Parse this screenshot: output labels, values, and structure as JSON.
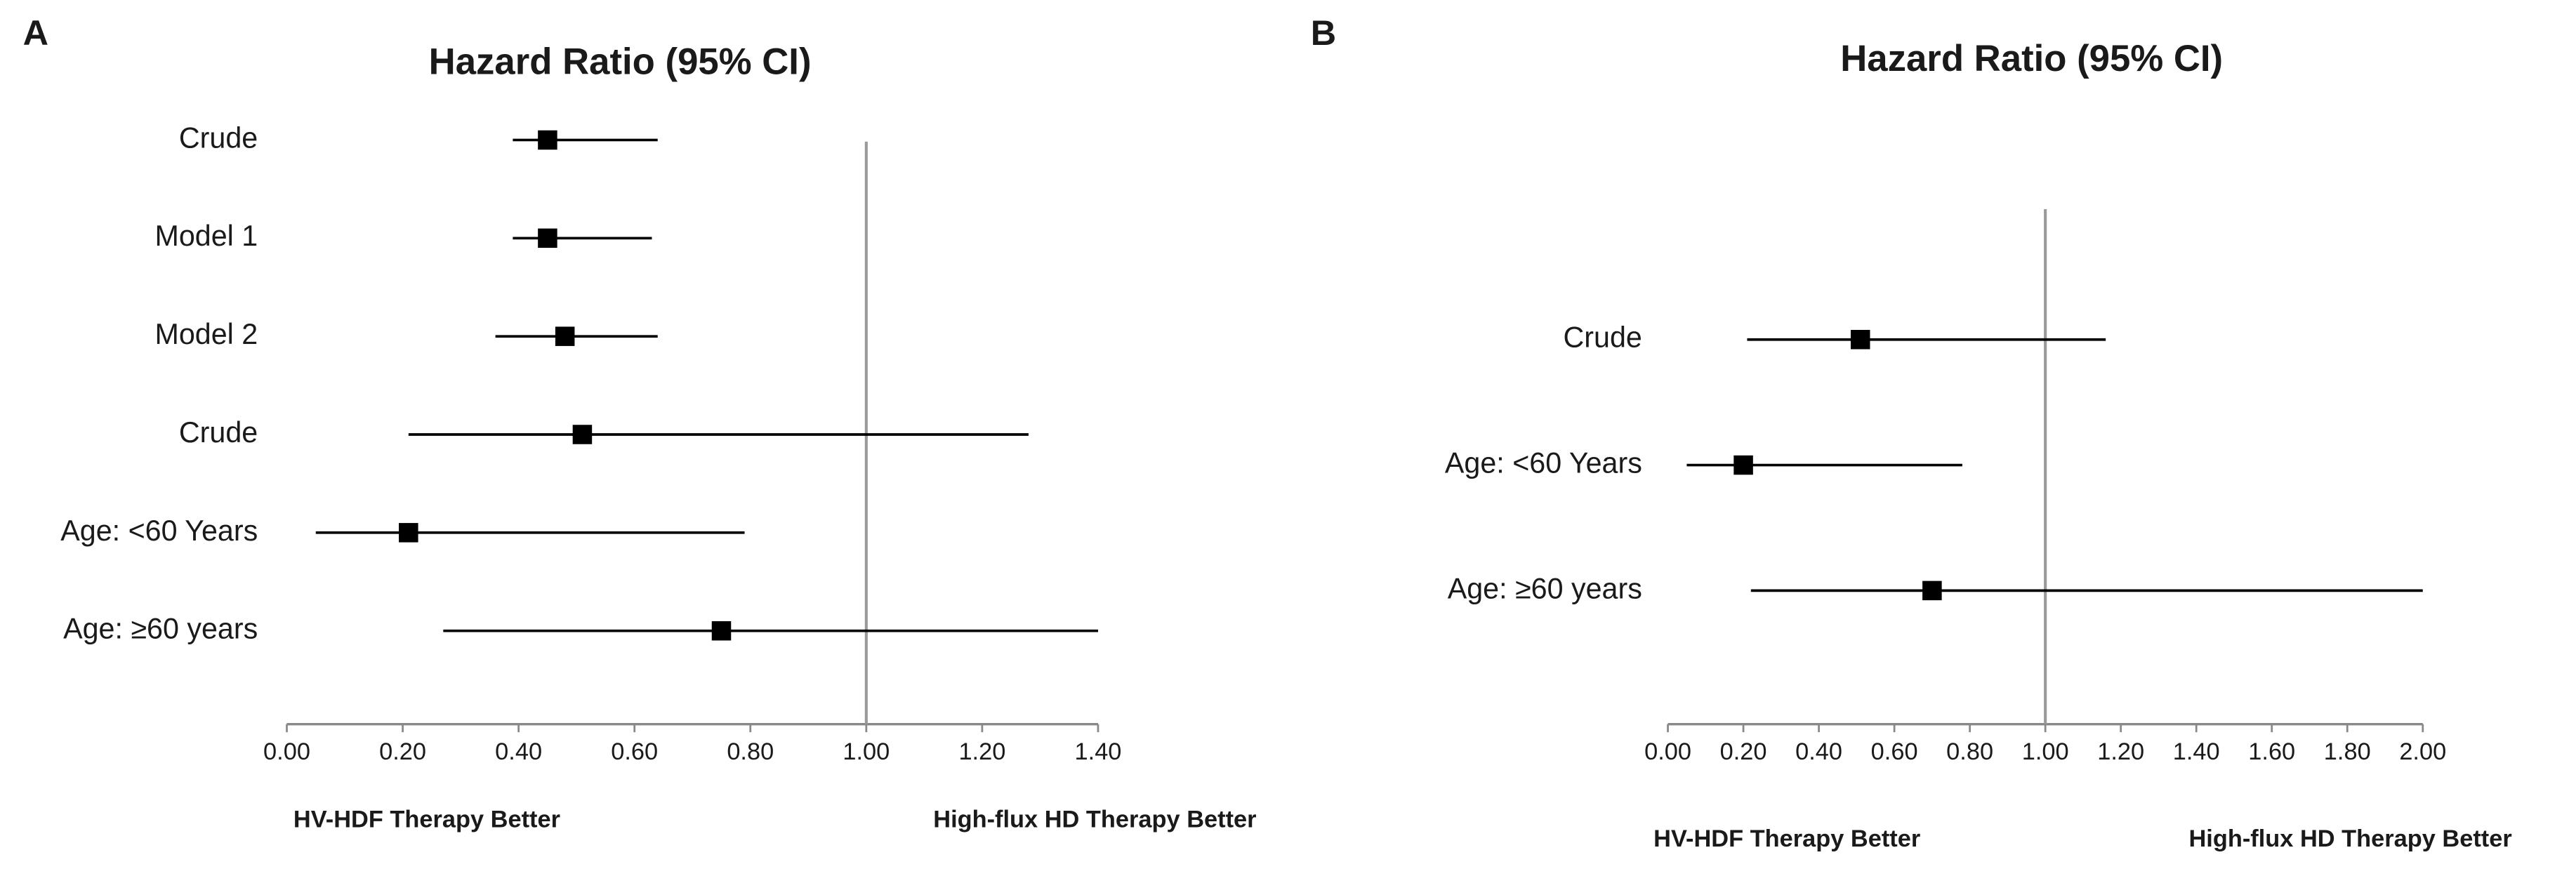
{
  "chart_data": [
    {
      "type": "forest",
      "panel": "A",
      "title": "Hazard Ratio (95% CI)",
      "categories": [
        "Crude",
        "Model 1",
        "Model 2",
        "Crude",
        "Age: <60 Years",
        "Age: ≥60 years"
      ],
      "values": [
        0.45,
        0.45,
        0.48,
        0.51,
        0.21,
        0.75
      ],
      "ci_lower": [
        0.39,
        0.39,
        0.36,
        0.21,
        0.05,
        0.27
      ],
      "ci_upper": [
        0.64,
        0.63,
        0.64,
        1.28,
        0.79,
        1.4
      ],
      "color": "#000000",
      "reference_line": 1.0,
      "xlim": [
        0,
        1.4
      ],
      "xticks": [
        {
          "value": 0,
          "label": "0.00"
        },
        {
          "value": 0.2,
          "label": "0.20"
        },
        {
          "value": 0.4,
          "label": "0.40"
        },
        {
          "value": 0.6,
          "label": "0.60"
        },
        {
          "value": 0.8,
          "label": "0.80"
        },
        {
          "value": 1.0,
          "label": "1.00"
        },
        {
          "value": 1.2,
          "label": "1.20"
        },
        {
          "value": 1.4,
          "label": "1.40"
        }
      ],
      "left_note": "HV-HDF Therapy Better",
      "right_note": "High-flux HD Therapy Better"
    },
    {
      "type": "forest",
      "panel": "B",
      "title": "Hazard Ratio (95% CI)",
      "categories": [
        "Crude",
        "Age: <60 Years",
        "Age: ≥60 years"
      ],
      "values": [
        0.51,
        0.2,
        0.7
      ],
      "ci_lower": [
        0.21,
        0.05,
        0.22
      ],
      "ci_upper": [
        1.16,
        0.78,
        2.0
      ],
      "color": "#000000",
      "reference_line": 1.0,
      "xlim": [
        0,
        2.0
      ],
      "xticks": [
        {
          "value": 0,
          "label": "0.00"
        },
        {
          "value": 0.2,
          "label": "0.20"
        },
        {
          "value": 0.4,
          "label": "0.40"
        },
        {
          "value": 0.6,
          "label": "0.60"
        },
        {
          "value": 0.8,
          "label": "0.80"
        },
        {
          "value": 1.0,
          "label": "1.00"
        },
        {
          "value": 1.2,
          "label": "1.20"
        },
        {
          "value": 1.4,
          "label": "1.40"
        },
        {
          "value": 1.6,
          "label": "1.60"
        },
        {
          "value": 1.8,
          "label": "1.80"
        },
        {
          "value": 2.0,
          "label": "2.00"
        }
      ],
      "left_note": "HV-HDF Therapy Better",
      "right_note": "High-flux HD Therapy Better"
    }
  ]
}
